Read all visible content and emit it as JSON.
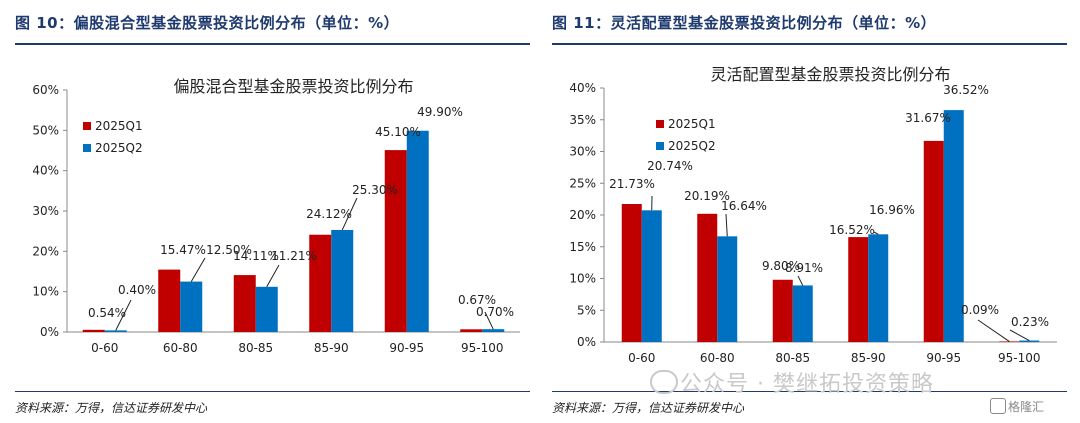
{
  "figures": [
    {
      "title": "图 10：偏股混合型基金股票投资比例分布（单位：%）",
      "source": "资料来源：万得，信达证券研发中心"
    },
    {
      "title": "图 11：灵活配置型基金股票投资比例分布（单位：%）",
      "source": "资料来源：万得，信达证券研发中心"
    }
  ],
  "watermark": "公众号 · 樊继拓投资策略",
  "logo_text": "格隆汇",
  "colors": {
    "q1": "#c00000",
    "q2": "#0070c0",
    "title": "#1f3a6e"
  },
  "chart_data": [
    {
      "type": "bar",
      "title": "偏股混合型基金股票投资比例分布",
      "categories": [
        "0-60",
        "60-80",
        "80-85",
        "85-90",
        "90-95",
        "95-100"
      ],
      "series": [
        {
          "name": "2025Q1",
          "values": [
            0.54,
            15.47,
            14.11,
            24.12,
            45.1,
            0.67
          ],
          "labels": [
            "0.54%",
            "15.47%",
            "14.11%",
            "24.12%",
            "45.10%",
            "0.67%"
          ]
        },
        {
          "name": "2025Q2",
          "values": [
            0.4,
            12.5,
            11.21,
            25.3,
            49.9,
            0.7
          ],
          "labels": [
            "0.40%",
            "12.50%",
            "11.21%",
            "25.30%",
            "49.90%",
            "0.70%"
          ]
        }
      ],
      "ylim": [
        0,
        60
      ],
      "yticks": [
        "0%",
        "10%",
        "20%",
        "30%",
        "40%",
        "50%",
        "60%"
      ],
      "grid": false,
      "legend": "top-left"
    },
    {
      "type": "bar",
      "title": "灵活配置型基金股票投资比例分布",
      "categories": [
        "0-60",
        "60-80",
        "80-85",
        "85-90",
        "90-95",
        "95-100"
      ],
      "series": [
        {
          "name": "2025Q1",
          "values": [
            21.73,
            20.19,
            9.8,
            16.52,
            31.67,
            0.09
          ],
          "labels": [
            "21.73%",
            "20.19%",
            "9.80%",
            "16.52%",
            "31.67%",
            "0.09%"
          ]
        },
        {
          "name": "2025Q2",
          "values": [
            20.74,
            16.64,
            8.91,
            16.96,
            36.52,
            0.23
          ],
          "labels": [
            "20.74%",
            "16.64%",
            "8.91%",
            "16.96%",
            "36.52%",
            "0.23%"
          ]
        }
      ],
      "ylim": [
        0,
        40
      ],
      "yticks": [
        "0%",
        "5%",
        "10%",
        "15%",
        "20%",
        "25%",
        "30%",
        "35%",
        "40%"
      ],
      "grid": false,
      "legend": "top-left"
    }
  ]
}
